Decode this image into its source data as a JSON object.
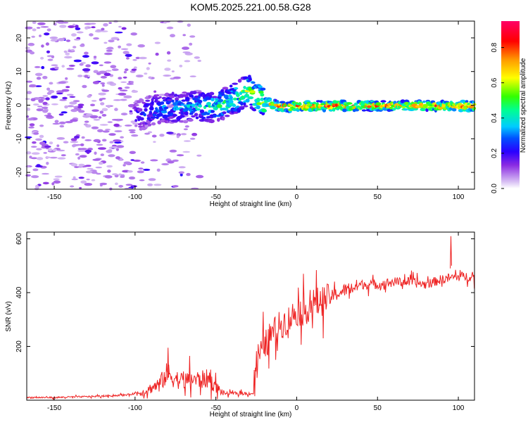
{
  "title": "KOM5.2025.221.00.58.G28",
  "chart_data": [
    {
      "type": "heatmap",
      "name": "spectrogram",
      "xlabel": "Height of straight line (km)",
      "ylabel": "Frequency (Hz)",
      "xlim": [
        -167,
        110
      ],
      "ylim": [
        -25,
        25
      ],
      "xticks": [
        -150,
        -100,
        -50,
        0,
        50,
        100
      ],
      "yticks": [
        -20,
        -10,
        0,
        10,
        20
      ],
      "colorbar": {
        "label": "Normalized spectral amplitude",
        "range": [
          0.0,
          0.95
        ],
        "ticks": [
          0.0,
          0.2,
          0.4,
          0.6,
          0.8
        ],
        "tick_labels": [
          "0.0",
          "0.2",
          "0.4",
          "0.6",
          "0.8"
        ]
      },
      "signal_track": {
        "x": [
          -100,
          -90,
          -80,
          -70,
          -60,
          -50,
          -40,
          -35,
          -30,
          -25,
          -20,
          -15,
          -10,
          -5,
          0,
          20,
          50,
          80,
          110
        ],
        "freq_hz": [
          -3.5,
          -1.5,
          -0.8,
          -0.6,
          -0.3,
          -0.5,
          1.5,
          3.0,
          4.5,
          2.5,
          0.8,
          0.2,
          -0.3,
          -0.5,
          -0.2,
          -0.2,
          -0.2,
          -0.2,
          -0.3
        ],
        "amplitude": [
          0.25,
          0.3,
          0.35,
          0.35,
          0.4,
          0.45,
          0.5,
          0.55,
          0.6,
          0.6,
          0.7,
          0.75,
          0.8,
          0.85,
          0.8,
          0.85,
          0.8,
          0.82,
          0.8
        ]
      }
    },
    {
      "type": "line",
      "name": "snr",
      "xlabel": "Height of straight line (km)",
      "ylabel": "SNR (v/v)",
      "xlim": [
        -167,
        110
      ],
      "ylim": [
        0,
        625
      ],
      "xticks": [
        -150,
        -100,
        -50,
        0,
        50,
        100
      ],
      "yticks": [
        200,
        400,
        600
      ],
      "color": "#ee2222",
      "series": [
        {
          "name": "SNR",
          "x": [
            -167,
            -150,
            -120,
            -105,
            -95,
            -85,
            -80,
            -75,
            -70,
            -65,
            -60,
            -55,
            -50,
            -45,
            -40,
            -35,
            -30,
            -27,
            -25,
            -20,
            -15,
            -10,
            -5,
            0,
            5,
            10,
            20,
            30,
            40,
            50,
            60,
            70,
            80,
            90,
            95,
            100,
            110
          ],
          "values": [
            10,
            10,
            15,
            20,
            30,
            60,
            100,
            80,
            70,
            80,
            75,
            80,
            50,
            25,
            25,
            25,
            25,
            25,
            150,
            200,
            250,
            280,
            300,
            330,
            330,
            360,
            380,
            410,
            430,
            430,
            440,
            440,
            430,
            450,
            455,
            460,
            460
          ]
        }
      ],
      "annotations": [
        {
          "x": 95,
          "y": 610,
          "note": "peak"
        },
        {
          "x": -80,
          "y": 195,
          "note": "local max"
        }
      ]
    }
  ]
}
